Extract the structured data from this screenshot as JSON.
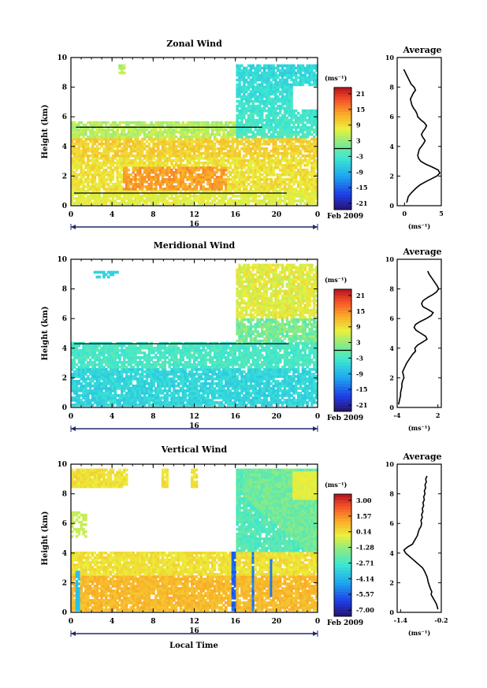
{
  "date_label": "Feb 2009",
  "x_axis_label": "Local Time",
  "day_label": "16",
  "chart_data": [
    {
      "type": "heatmap",
      "title": "Zonal Wind",
      "ylabel": "Height (km)",
      "units": "(ms⁻¹)",
      "xlim": [
        0,
        24
      ],
      "ylim": [
        0,
        10
      ],
      "x_ticks": [
        "0",
        "4",
        "8",
        "12",
        "16",
        "20",
        "0"
      ],
      "y_ticks": [
        "0",
        "2",
        "4",
        "6",
        "8",
        "10"
      ],
      "colorbar_ticks": [
        "21",
        "15",
        "9",
        "3",
        "-3",
        "-9",
        "-15",
        "-21"
      ],
      "colorbar_range": [
        -24,
        24
      ],
      "average": {
        "title": "Average",
        "xlabel": "(ms⁻¹)",
        "xlim": [
          -1,
          5
        ],
        "x_ticks": [
          "0",
          "5"
        ],
        "y_ticks": [
          "0",
          "2",
          "4",
          "6",
          "8",
          "10"
        ],
        "values": [
          0.3,
          0.4,
          0.5,
          0.8,
          1.2,
          1.6,
          2.1,
          2.8,
          3.6,
          4.4,
          4.8,
          4.6,
          3.8,
          2.9,
          2.2,
          1.9,
          1.8,
          1.9,
          2.0,
          2.3,
          2.6,
          2.8,
          2.5,
          2.3,
          2.5,
          2.8,
          3.0,
          2.7,
          2.2,
          1.8,
          1.7,
          1.5,
          1.2,
          1.0,
          0.9,
          0.8,
          1.0,
          1.2,
          1.5,
          1.3,
          0.9,
          0.7,
          0.5,
          0.3,
          0.1,
          -0.1
        ],
        "heights": [
          0.2,
          0.4,
          0.6,
          0.8,
          1.0,
          1.2,
          1.4,
          1.6,
          1.8,
          2.0,
          2.2,
          2.4,
          2.6,
          2.8,
          3.0,
          3.2,
          3.4,
          3.6,
          3.8,
          4.0,
          4.2,
          4.4,
          4.6,
          4.8,
          5.0,
          5.2,
          5.4,
          5.6,
          5.8,
          6.0,
          6.2,
          6.4,
          6.6,
          6.8,
          7.0,
          7.2,
          7.4,
          7.6,
          7.8,
          8.0,
          8.2,
          8.4,
          8.6,
          8.8,
          9.0,
          9.2
        ]
      },
      "field": "zonal"
    },
    {
      "type": "heatmap",
      "title": "Meridional Wind",
      "ylabel": "Height (km)",
      "units": "(ms⁻¹)",
      "xlim": [
        0,
        24
      ],
      "ylim": [
        0,
        10
      ],
      "x_ticks": [
        "0",
        "4",
        "8",
        "12",
        "16",
        "20",
        "0"
      ],
      "y_ticks": [
        "0",
        "2",
        "4",
        "6",
        "8",
        "10"
      ],
      "colorbar_ticks": [
        "21",
        "15",
        "9",
        "3",
        "-3",
        "-9",
        "-15",
        "-21"
      ],
      "colorbar_range": [
        -24,
        24
      ],
      "average": {
        "title": "Average",
        "xlabel": "(ms⁻¹)",
        "xlim": [
          -4,
          2.5
        ],
        "x_ticks": [
          "-4",
          "2"
        ],
        "y_ticks": [
          "0",
          "2",
          "4",
          "6",
          "8",
          "10"
        ],
        "values": [
          -3.8,
          -3.7,
          -3.6,
          -3.5,
          -3.5,
          -3.4,
          -3.3,
          -3.3,
          -3.2,
          -3.0,
          -3.1,
          -3.2,
          -3.0,
          -2.8,
          -2.6,
          -2.3,
          -2.0,
          -1.7,
          -1.3,
          -1.4,
          -1.0,
          -0.3,
          0.4,
          0.2,
          -0.5,
          -1.2,
          -1.5,
          -1.3,
          -0.6,
          0.3,
          1.0,
          1.3,
          0.6,
          -0.2,
          -0.4,
          -0.2,
          0.4,
          1.2,
          1.8,
          2.1,
          1.9,
          1.6,
          1.3,
          1.0,
          0.7,
          0.5
        ],
        "heights": [
          0.2,
          0.4,
          0.6,
          0.8,
          1.0,
          1.2,
          1.4,
          1.6,
          1.8,
          2.0,
          2.2,
          2.4,
          2.6,
          2.8,
          3.0,
          3.2,
          3.4,
          3.6,
          3.8,
          4.0,
          4.2,
          4.4,
          4.6,
          4.8,
          5.0,
          5.2,
          5.4,
          5.6,
          5.8,
          6.0,
          6.2,
          6.4,
          6.6,
          6.8,
          7.0,
          7.2,
          7.4,
          7.6,
          7.8,
          8.0,
          8.2,
          8.4,
          8.6,
          8.8,
          9.0,
          9.2
        ]
      },
      "field": "meridional"
    },
    {
      "type": "heatmap",
      "title": "Vertical Wind",
      "ylabel": "Height (km)",
      "units": "(ms⁻¹)",
      "xlim": [
        0,
        24
      ],
      "ylim": [
        0,
        10
      ],
      "x_ticks": [
        "0",
        "4",
        "8",
        "12",
        "16",
        "20",
        "0"
      ],
      "y_ticks": [
        "0",
        "2",
        "4",
        "6",
        "8",
        "10"
      ],
      "colorbar_ticks": [
        "3.00",
        "1.57",
        "0.14",
        "-1.28",
        "-2.71",
        "-4.14",
        "-5.57",
        "-7.00"
      ],
      "colorbar_range": [
        -8.0,
        4.0
      ],
      "average": {
        "title": "Average",
        "xlabel": "(ms⁻¹)",
        "xlim": [
          -1.5,
          -0.2
        ],
        "x_ticks": [
          "-1.4",
          "-0.2"
        ],
        "y_ticks": [
          "0",
          "2",
          "4",
          "6",
          "8",
          "10"
        ],
        "values": [
          -0.3,
          -0.32,
          -0.35,
          -0.4,
          -0.45,
          -0.5,
          -0.48,
          -0.52,
          -0.55,
          -0.58,
          -0.6,
          -0.62,
          -0.66,
          -0.7,
          -0.75,
          -0.85,
          -0.95,
          -1.05,
          -1.15,
          -1.25,
          -1.3,
          -1.2,
          -1.05,
          -1.0,
          -0.95,
          -0.9,
          -0.88,
          -0.85,
          -0.8,
          -0.78,
          -0.8,
          -0.76,
          -0.78,
          -0.74,
          -0.76,
          -0.72,
          -0.74,
          -0.7,
          -0.72,
          -0.68,
          -0.7,
          -0.66,
          -0.68,
          -0.64,
          -0.66,
          -0.62
        ],
        "heights": [
          0.2,
          0.4,
          0.6,
          0.8,
          1.0,
          1.2,
          1.4,
          1.6,
          1.8,
          2.0,
          2.2,
          2.4,
          2.6,
          2.8,
          3.0,
          3.2,
          3.4,
          3.6,
          3.8,
          4.0,
          4.2,
          4.4,
          4.6,
          4.8,
          5.0,
          5.2,
          5.4,
          5.6,
          5.8,
          6.0,
          6.2,
          6.4,
          6.6,
          6.8,
          7.0,
          7.2,
          7.4,
          7.6,
          7.8,
          8.0,
          8.2,
          8.4,
          8.6,
          8.8,
          9.0,
          9.2
        ]
      },
      "field": "vertical"
    }
  ]
}
